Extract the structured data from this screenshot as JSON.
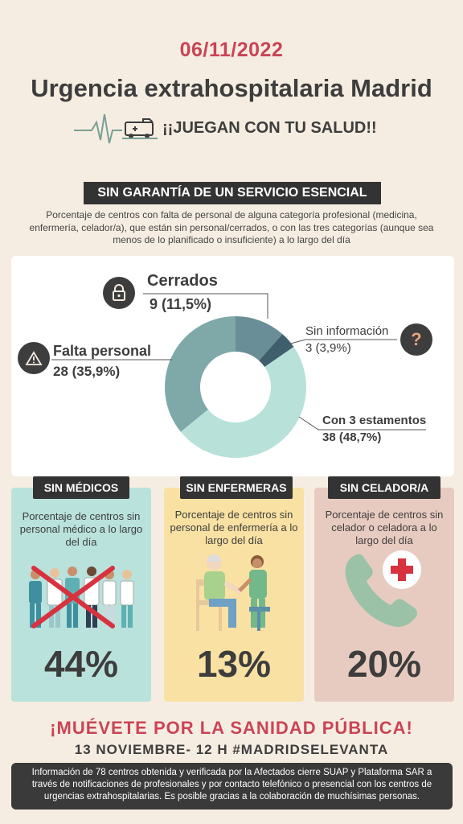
{
  "header": {
    "date": "06/11/2022",
    "title": "Urgencia extrahospitalaria Madrid",
    "slogan": "¡¡JUEGAN CON TU SALUD!!"
  },
  "section": {
    "banner": "SIN GARANTÍA DE UN SERVICIO  ESENCIAL",
    "intro": "Porcentaje de centros con falta de personal de alguna categoría profesional (medicina, enfermería, celador/a), que están sin personal/cerrados, o con las tres categorías (aunque sea menos de lo planificado o insuficiente) a lo largo del día"
  },
  "labels": {
    "cerrados_name": "Cerrados",
    "cerrados_value": "9 (11,5%)",
    "sininfo_name": "Sin información",
    "sininfo_value": "3 (3,9%)",
    "falta_name": "Falta personal",
    "falta_value": "28 (35,9%)",
    "con3_name": "Con 3 estamentos",
    "con3_value": "38 (48,7%)"
  },
  "chart_data": {
    "type": "pie",
    "title": "",
    "categories": [
      "Cerrados",
      "Sin información",
      "Con 3 estamentos",
      "Falta personal"
    ],
    "values": [
      9,
      3,
      38,
      28
    ],
    "percentages": [
      11.5,
      3.9,
      48.7,
      35.9
    ],
    "colors": [
      "#6a8e98",
      "#3f5f6d",
      "#b8e1da",
      "#7fa9a9"
    ],
    "donut": true
  },
  "cards": [
    {
      "tag": "SIN MÉDICOS",
      "desc": "Porcentaje de centros sin personal médico a lo largo del día",
      "value": "44%",
      "bg": "#b9e2dc"
    },
    {
      "tag": "SIN ENFERMERAS",
      "desc": "Porcentaje de centros sin personal de enfermería a lo largo del día",
      "value": "13%",
      "bg": "#f8e1a2"
    },
    {
      "tag": "SIN CELADOR/A",
      "desc": "Porcentaje de centros sin celador o celadora a lo largo del día",
      "value": "20%",
      "bg": "#e8cbc0"
    }
  ],
  "cta": {
    "line1": "¡MUÉVETE POR LA SANIDAD PÚBLICA!",
    "line2": "13 NOVIEMBRE- 12 H #MADRIDSELEVANTA"
  },
  "footer": {
    "text": "Información de 78 centros obtenida y verificada por la Afectados cierre SUAP y Plataforma SAR a través de notificaciones de profesionales y por contacto telefónico o presencial con los centros de urgencias extrahospitalarias. Es posible gracias a la colaboración de muchísimas personas."
  },
  "icons": {
    "ekg": "heartbeat-ambulance-icon",
    "cerrados": "lock-icon",
    "sininfo": "question-icon",
    "falta": "warning-icon",
    "medicos": "doctors-crossed-icon",
    "enfermeras": "nurse-patient-icon",
    "celador": "phone-medical-icon"
  }
}
